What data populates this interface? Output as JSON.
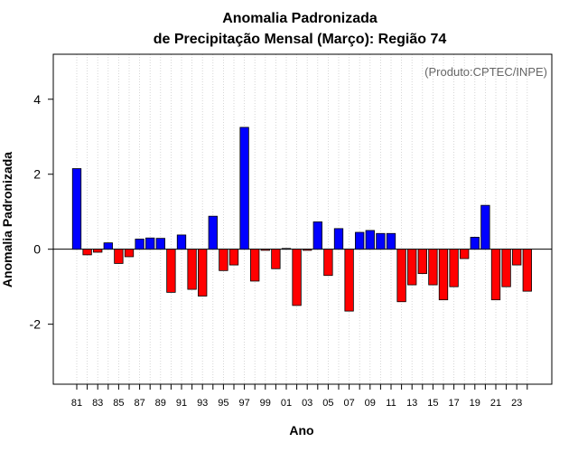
{
  "chart_data": {
    "type": "bar",
    "title_line1": "Anomalia Padronizada",
    "title_line2": "de Precipitação Mensal (Março): Região 74",
    "xlabel": "Ano",
    "ylabel": "Anomalia Padronizada",
    "credit": "(Produto:CPTEC/INPE)",
    "ylim": [
      -3.6,
      5.2
    ],
    "yticks": [
      "-2",
      "0",
      "2",
      "4"
    ],
    "ytick_values": [
      -2,
      0,
      2,
      4
    ],
    "grid": "vertical dotted",
    "categories": [
      "81",
      "82",
      "83",
      "84",
      "85",
      "86",
      "87",
      "88",
      "89",
      "90",
      "91",
      "92",
      "93",
      "94",
      "95",
      "96",
      "97",
      "98",
      "99",
      "00",
      "01",
      "02",
      "03",
      "04",
      "05",
      "06",
      "07",
      "08",
      "09",
      "10",
      "11",
      "12",
      "13",
      "14",
      "15",
      "16",
      "17",
      "18",
      "19",
      "20",
      "21",
      "22",
      "23",
      "24"
    ],
    "xtick_labels": [
      "81",
      "83",
      "85",
      "87",
      "89",
      "91",
      "93",
      "95",
      "97",
      "99",
      "01",
      "03",
      "05",
      "07",
      "09",
      "11",
      "13",
      "15",
      "17",
      "19",
      "21",
      "23"
    ],
    "values": [
      2.15,
      -0.15,
      -0.08,
      0.17,
      -0.38,
      -0.2,
      0.27,
      0.3,
      0.29,
      -1.15,
      0.38,
      -1.07,
      -1.25,
      0.88,
      -0.57,
      -0.42,
      3.25,
      -0.85,
      -0.03,
      -0.52,
      0.02,
      -1.5,
      -0.03,
      0.73,
      -0.7,
      0.55,
      -1.65,
      0.45,
      0.5,
      0.42,
      0.42,
      -1.4,
      -0.95,
      -0.65,
      -0.95,
      -1.35,
      -1.0,
      -0.25,
      0.32,
      1.17,
      -1.35,
      -1.0,
      -0.42,
      -1.12
    ],
    "colors": {
      "positive": "#0000ff",
      "negative": "#ff0000",
      "grid": "#cccccc",
      "zero_line": "#000000"
    }
  }
}
